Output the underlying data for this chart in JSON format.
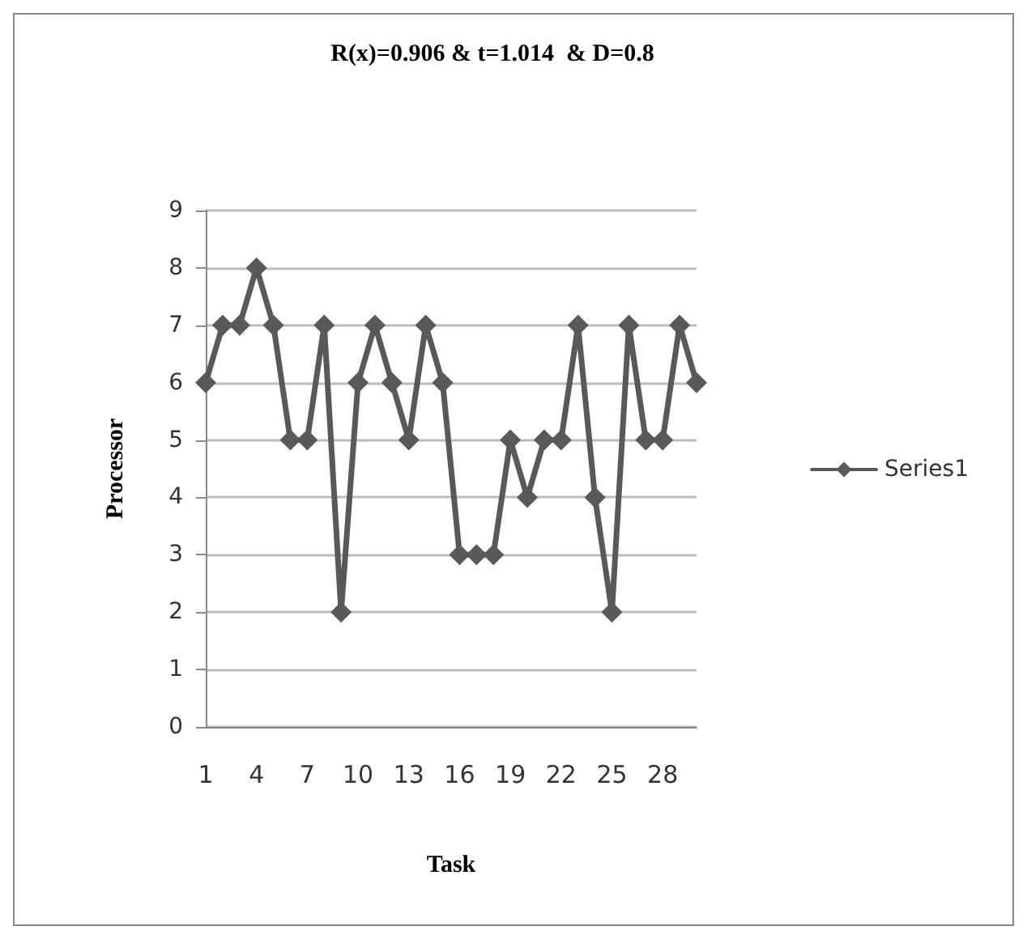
{
  "chart_data": {
    "type": "line",
    "title": "R(x)=0.906 & t=1.014  & D=0.8",
    "xlabel": "Task",
    "ylabel": "Processor",
    "categories": [
      "1",
      null,
      null,
      "4",
      null,
      null,
      "7",
      null,
      null,
      "10",
      null,
      null,
      "13",
      null,
      null,
      "16",
      null,
      null,
      "19",
      null,
      null,
      "22",
      null,
      null,
      "25",
      null,
      null,
      "28",
      null,
      null
    ],
    "series": [
      {
        "name": "Series1",
        "color": "#595959",
        "values": [
          6,
          7,
          7,
          8,
          7,
          5,
          5,
          7,
          2,
          6,
          7,
          6,
          5,
          7,
          6,
          3,
          3,
          3,
          5,
          4,
          5,
          5,
          7,
          4,
          2,
          7,
          5,
          5,
          7,
          6
        ]
      }
    ],
    "ylim": [
      0,
      9
    ],
    "yticks": [
      0,
      1,
      2,
      3,
      4,
      5,
      6,
      7,
      8,
      9
    ],
    "grid": "y",
    "legend": "right",
    "marker": "diamond",
    "line_style": "solid"
  }
}
